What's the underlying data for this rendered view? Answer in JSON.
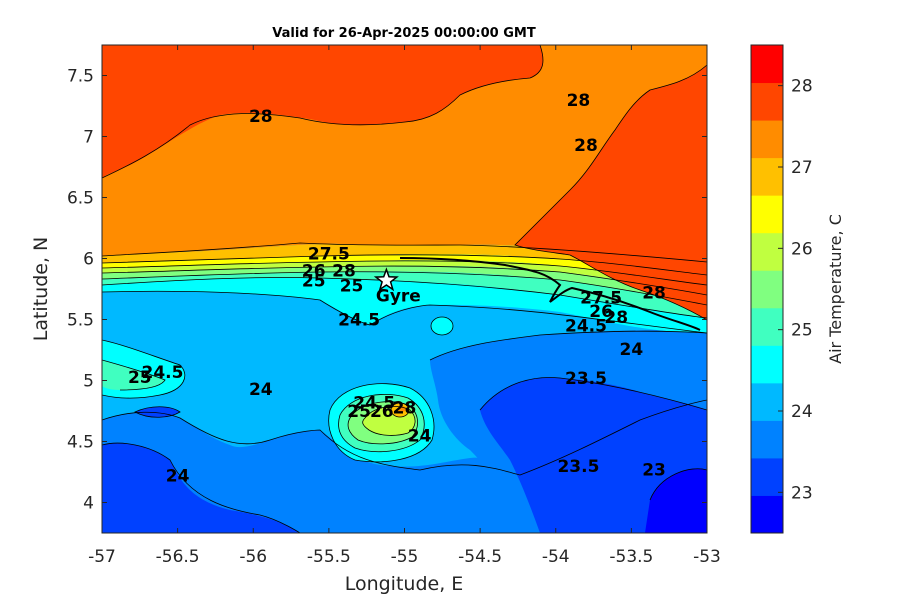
{
  "chart_data": {
    "type": "heatmap",
    "title": "Valid for 26-Apr-2025 00:00:00 GMT",
    "xlabel": "Longitude, E",
    "ylabel": "Latitude, N",
    "xlim": [
      -57,
      -53
    ],
    "ylim": [
      3.75,
      7.75
    ],
    "x_ticks": [
      "-57",
      "-56.5",
      "-56",
      "-55.5",
      "-55",
      "-54.5",
      "-54",
      "-53.5",
      "-53"
    ],
    "y_ticks": [
      "7.5",
      "7",
      "6.5",
      "6",
      "5.5",
      "5",
      "4.5",
      "4"
    ],
    "colorbar": {
      "label": "Air Temperature, C",
      "range": [
        22.5,
        28.5
      ],
      "ticks": [
        "28",
        "27",
        "26",
        "25",
        "24",
        "23"
      ],
      "colors": [
        "#0000ff",
        "#0041ff",
        "#0082ff",
        "#00b9ff",
        "#00ffff",
        "#40ffc0",
        "#80ff80",
        "#c0ff40",
        "#ffff00",
        "#ffc000",
        "#ff8c00",
        "#ff4600",
        "#ff0000"
      ]
    },
    "contour_labels": [
      {
        "text": "28",
        "lon": -53.85,
        "lat": 7.3
      },
      {
        "text": "28",
        "lon": -55.95,
        "lat": 7.17
      },
      {
        "text": "28",
        "lon": -53.8,
        "lat": 6.93
      },
      {
        "text": "27.5",
        "lon": -55.5,
        "lat": 6.04
      },
      {
        "text": "26",
        "lon": -55.6,
        "lat": 5.9
      },
      {
        "text": "28",
        "lon": -55.4,
        "lat": 5.9
      },
      {
        "text": "25",
        "lon": -55.6,
        "lat": 5.82
      },
      {
        "text": "25",
        "lon": -55.35,
        "lat": 5.78
      },
      {
        "text": "24.5",
        "lon": -55.3,
        "lat": 5.5
      },
      {
        "text": "27.5",
        "lon": -53.7,
        "lat": 5.68
      },
      {
        "text": "28",
        "lon": -53.35,
        "lat": 5.72
      },
      {
        "text": "26",
        "lon": -53.7,
        "lat": 5.57
      },
      {
        "text": "28",
        "lon": -53.6,
        "lat": 5.52
      },
      {
        "text": "24.5",
        "lon": -53.8,
        "lat": 5.45
      },
      {
        "text": "24.5",
        "lon": -56.6,
        "lat": 5.07
      },
      {
        "text": "25",
        "lon": -56.75,
        "lat": 5.03
      },
      {
        "text": "24",
        "lon": -53.5,
        "lat": 5.26
      },
      {
        "text": "23.5",
        "lon": -53.8,
        "lat": 5.02
      },
      {
        "text": "24",
        "lon": -55.95,
        "lat": 4.93
      },
      {
        "text": "24.5",
        "lon": -55.2,
        "lat": 4.82
      },
      {
        "text": "25",
        "lon": -55.3,
        "lat": 4.75
      },
      {
        "text": "26",
        "lon": -55.15,
        "lat": 4.75
      },
      {
        "text": "28",
        "lon": -55.0,
        "lat": 4.78
      },
      {
        "text": "24",
        "lon": -54.9,
        "lat": 4.55
      },
      {
        "text": "23.5",
        "lon": -53.85,
        "lat": 4.3
      },
      {
        "text": "23",
        "lon": -53.35,
        "lat": 4.27
      },
      {
        "text": "24",
        "lon": -56.5,
        "lat": 4.22
      }
    ],
    "markers": [
      {
        "label": "Gyre",
        "lon": -55.12,
        "lat": 5.82,
        "symbol": "star"
      }
    ]
  }
}
